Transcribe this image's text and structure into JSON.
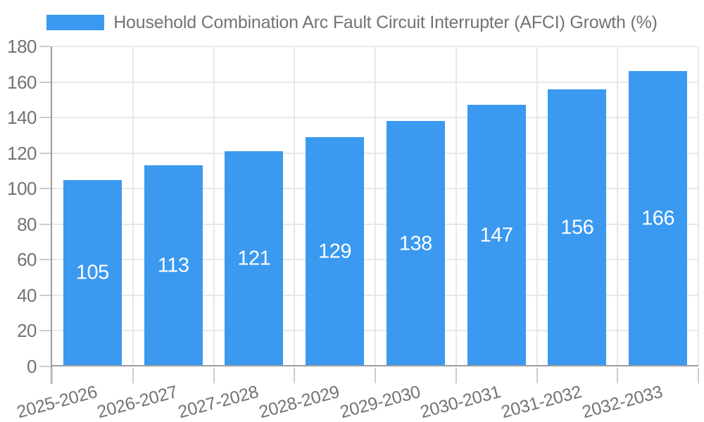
{
  "chart_data": {
    "type": "bar",
    "title": "",
    "categories": [
      "2025-2026",
      "2026-2027",
      "2027-2028",
      "2028-2029",
      "2029-2030",
      "2030-2031",
      "2031-2032",
      "2032-2033"
    ],
    "series": [
      {
        "name": "Household Combination Arc Fault Circuit Interrupter (AFCI) Growth (%)",
        "values": [
          105,
          113,
          121,
          129,
          138,
          147,
          156,
          166
        ],
        "color": "#3B99F0"
      }
    ],
    "xlabel": "",
    "ylabel": "",
    "ylim": [
      0,
      180
    ],
    "yticks": [
      0,
      20,
      40,
      60,
      80,
      100,
      120,
      140,
      160,
      180
    ],
    "x_tick_rotation_deg": -15,
    "grid": true,
    "legend_position": "top-center",
    "value_labels": "inside-center"
  },
  "style": {
    "bar_color": "#3B99F0",
    "bar_label_color": "#FFFFFF",
    "axis_text_color": "#737373",
    "grid_color": "#E8E8E8",
    "axis_line_color": "#9C9C9C",
    "tick_color": "#CCCCCC",
    "background_color": "#FFFFFF"
  }
}
